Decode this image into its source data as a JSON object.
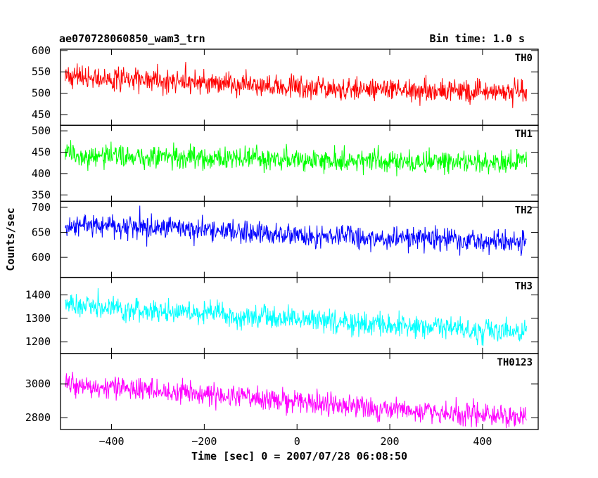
{
  "header": {
    "title": "ae070728060850_wam3_trn",
    "bin_time": "Bin time: 1.0 s"
  },
  "chart_data": {
    "type": "line",
    "xlabel": "Time [sec] 0 = 2007/07/28 06:08:50",
    "ylabel": "Counts/sec",
    "xlim": [
      -510,
      520
    ],
    "x_ticks": [
      -400,
      -200,
      0,
      200,
      400
    ],
    "bin_time_s": 1.0,
    "x_range": [
      -500,
      495
    ],
    "panels": [
      {
        "name": "TH0",
        "color": "#ff0000",
        "ylim": [
          425,
          603
        ],
        "y_ticks": [
          450,
          500,
          550,
          600
        ],
        "x": [
          -500,
          -400,
          -300,
          -200,
          -100,
          0,
          100,
          200,
          300,
          400,
          495
        ],
        "y": [
          540,
          535,
          530,
          525,
          520,
          515,
          510,
          510,
          505,
          505,
          500
        ]
      },
      {
        "name": "TH1",
        "color": "#00ff00",
        "ylim": [
          335,
          513
        ],
        "y_ticks": [
          350,
          400,
          450,
          500
        ],
        "x": [
          -500,
          -400,
          -300,
          -200,
          -100,
          0,
          100,
          200,
          300,
          400,
          495
        ],
        "y": [
          440,
          440,
          438,
          436,
          435,
          433,
          432,
          430,
          428,
          426,
          425
        ]
      },
      {
        "name": "TH2",
        "color": "#0000ff",
        "ylim": [
          560,
          712
        ],
        "y_ticks": [
          600,
          650,
          700
        ],
        "x": [
          -500,
          -400,
          -300,
          -200,
          -100,
          0,
          100,
          200,
          300,
          400,
          495
        ],
        "y": [
          665,
          663,
          660,
          658,
          650,
          645,
          640,
          638,
          635,
          632,
          630
        ]
      },
      {
        "name": "TH3",
        "color": "#00ffff",
        "ylim": [
          1150,
          1475
        ],
        "y_ticks": [
          1200,
          1300,
          1400
        ],
        "x": [
          -500,
          -400,
          -300,
          -200,
          -100,
          0,
          100,
          200,
          300,
          400,
          495
        ],
        "y": [
          1360,
          1345,
          1330,
          1320,
          1305,
          1295,
          1285,
          1270,
          1260,
          1250,
          1245
        ]
      },
      {
        "name": "TH0123",
        "color": "#ff00ff",
        "ylim": [
          2730,
          3180
        ],
        "y_ticks": [
          2800,
          3000
        ],
        "x": [
          -500,
          -400,
          -300,
          -200,
          -100,
          0,
          100,
          200,
          300,
          400,
          495
        ],
        "y": [
          3000,
          2985,
          2960,
          2940,
          2920,
          2895,
          2870,
          2850,
          2830,
          2815,
          2805
        ]
      }
    ]
  }
}
